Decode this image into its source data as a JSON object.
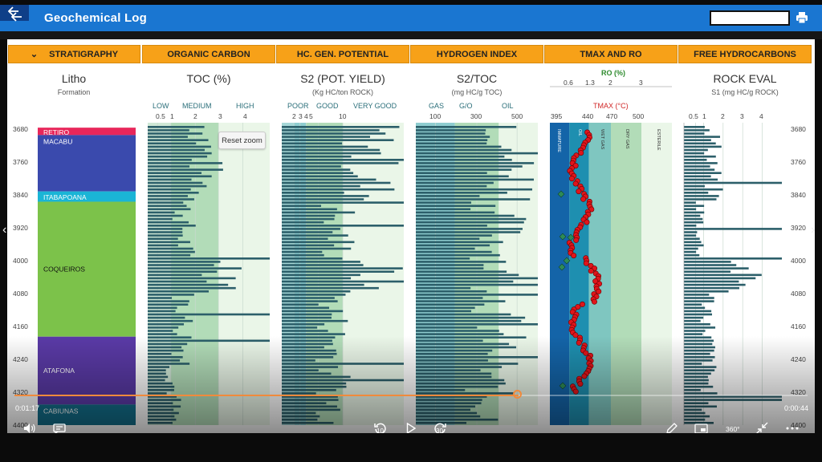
{
  "app": {
    "title": "Geochemical Log"
  },
  "headers": [
    "STRATIGRAPHY",
    "ORGANIC CARBON",
    "HC. GEN. POTENTIAL",
    "HYDROGEN INDEX",
    "TMAX AND RO",
    "FREE HYDROCARBONS"
  ],
  "tracks": {
    "litho": {
      "title": "Litho",
      "subtitle": "Formation"
    },
    "toc": {
      "title": "TOC (%)",
      "cats": [
        "LOW",
        "MEDIUM",
        "HIGH"
      ],
      "ticks": [
        "0.5",
        "1",
        "2",
        "3",
        "4"
      ]
    },
    "s2": {
      "title": "S2 (POT. YIELD)",
      "subtitle": "(Kg HC/ton ROCK)",
      "cats": [
        "POOR",
        "GOOD",
        "VERY GOOD"
      ],
      "ticks": [
        "2",
        "3",
        "4",
        "5",
        "10"
      ]
    },
    "hi": {
      "title": "S2/TOC",
      "subtitle": "(mg HC/g TOC)",
      "cats": [
        "GAS",
        "G/O",
        "OIL"
      ],
      "ticks": [
        "100",
        "300",
        "500"
      ]
    },
    "tmax": {
      "ro_label": "RO (%)",
      "ro_ticks": [
        "0.6",
        "1.3",
        "2",
        "3"
      ],
      "tmax_label": "TMAX (°C)",
      "tmax_ticks": [
        "395",
        "440",
        "470",
        "500"
      ],
      "zones": [
        "IMMATURE",
        "OIL",
        "WET GAS",
        "DRY GAS",
        "ESTERILE"
      ]
    },
    "rock": {
      "title": "ROCK EVAL",
      "subtitle": "S1 (mg HC/g ROCK)",
      "ticks": [
        "0.5",
        "1",
        "2",
        "3",
        "4"
      ]
    }
  },
  "depth_ticks": [
    "3680",
    "3760",
    "3840",
    "3920",
    "4000",
    "4080",
    "4160",
    "4240",
    "4320",
    "4400"
  ],
  "formations": [
    {
      "name": "RETIRO",
      "color": "#e8265a"
    },
    {
      "name": "MACABU",
      "color": "#3a4aad"
    },
    {
      "name": "ITABAPOANA",
      "color": "#1ab5d6"
    },
    {
      "name": "COQUEIROS",
      "color": "#7cc24a"
    },
    {
      "name": "ATAFONA",
      "color": "#5a3aa6"
    },
    {
      "name": "CABIUNAS",
      "color": "#136e8a"
    }
  ],
  "reset_zoom": "Reset zoom",
  "player": {
    "elapsed": "0:01:17",
    "remaining": "0:00:44",
    "rewind": "10",
    "forward": "30",
    "vr": "360°"
  },
  "colors": {
    "accent": "#1a76d1",
    "header": "#f7a118",
    "bar": "#2c5f6a"
  },
  "icons": {
    "back": "arrow-left-icon",
    "print": "printer-icon"
  }
}
